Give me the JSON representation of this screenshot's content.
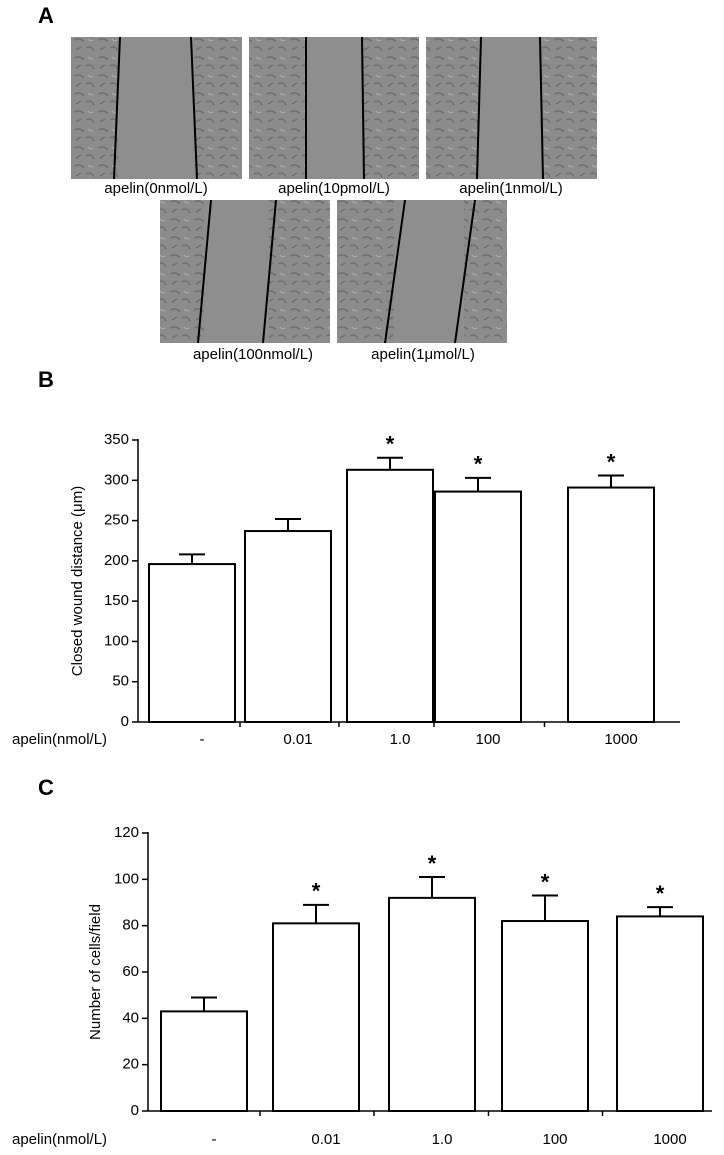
{
  "panel_a": {
    "label": "A",
    "images": [
      {
        "caption": "apelin(0nmol/L)"
      },
      {
        "caption": "apelin(10pmol/L)"
      },
      {
        "caption": "apelin(1nmol/L)"
      },
      {
        "caption": "apelin(100nmol/L)"
      },
      {
        "caption": "apelin(1μmol/L)"
      }
    ]
  },
  "chart_data": [
    {
      "type": "bar",
      "panel_label": "B",
      "y_label": "Closed wound distance (μm)",
      "x_label": "apelin(nmol/L)",
      "categories": [
        "-",
        "0.01",
        "1.0",
        "100",
        "1000"
      ],
      "values": [
        196,
        237,
        313,
        286,
        291
      ],
      "errors": [
        12,
        15,
        15,
        17,
        15
      ],
      "annotations": [
        null,
        null,
        "*",
        "*",
        "*"
      ],
      "color": "#ffffff",
      "ylim": [
        0,
        350
      ],
      "yticks": [
        0,
        50,
        100,
        150,
        200,
        250,
        300,
        350
      ]
    },
    {
      "type": "bar",
      "panel_label": "C",
      "y_label": "Number of cells/field",
      "x_label": "apelin(nmol/L)",
      "categories": [
        "-",
        "0.01",
        "1.0",
        "100",
        "1000"
      ],
      "values": [
        43,
        81,
        92,
        82,
        84
      ],
      "errors": [
        6,
        8,
        9,
        11,
        4
      ],
      "annotations": [
        null,
        "*",
        "*",
        "*",
        "*"
      ],
      "color": "#ffffff",
      "ylim": [
        0,
        120
      ],
      "yticks": [
        0,
        20,
        40,
        60,
        80,
        100,
        120
      ]
    }
  ]
}
